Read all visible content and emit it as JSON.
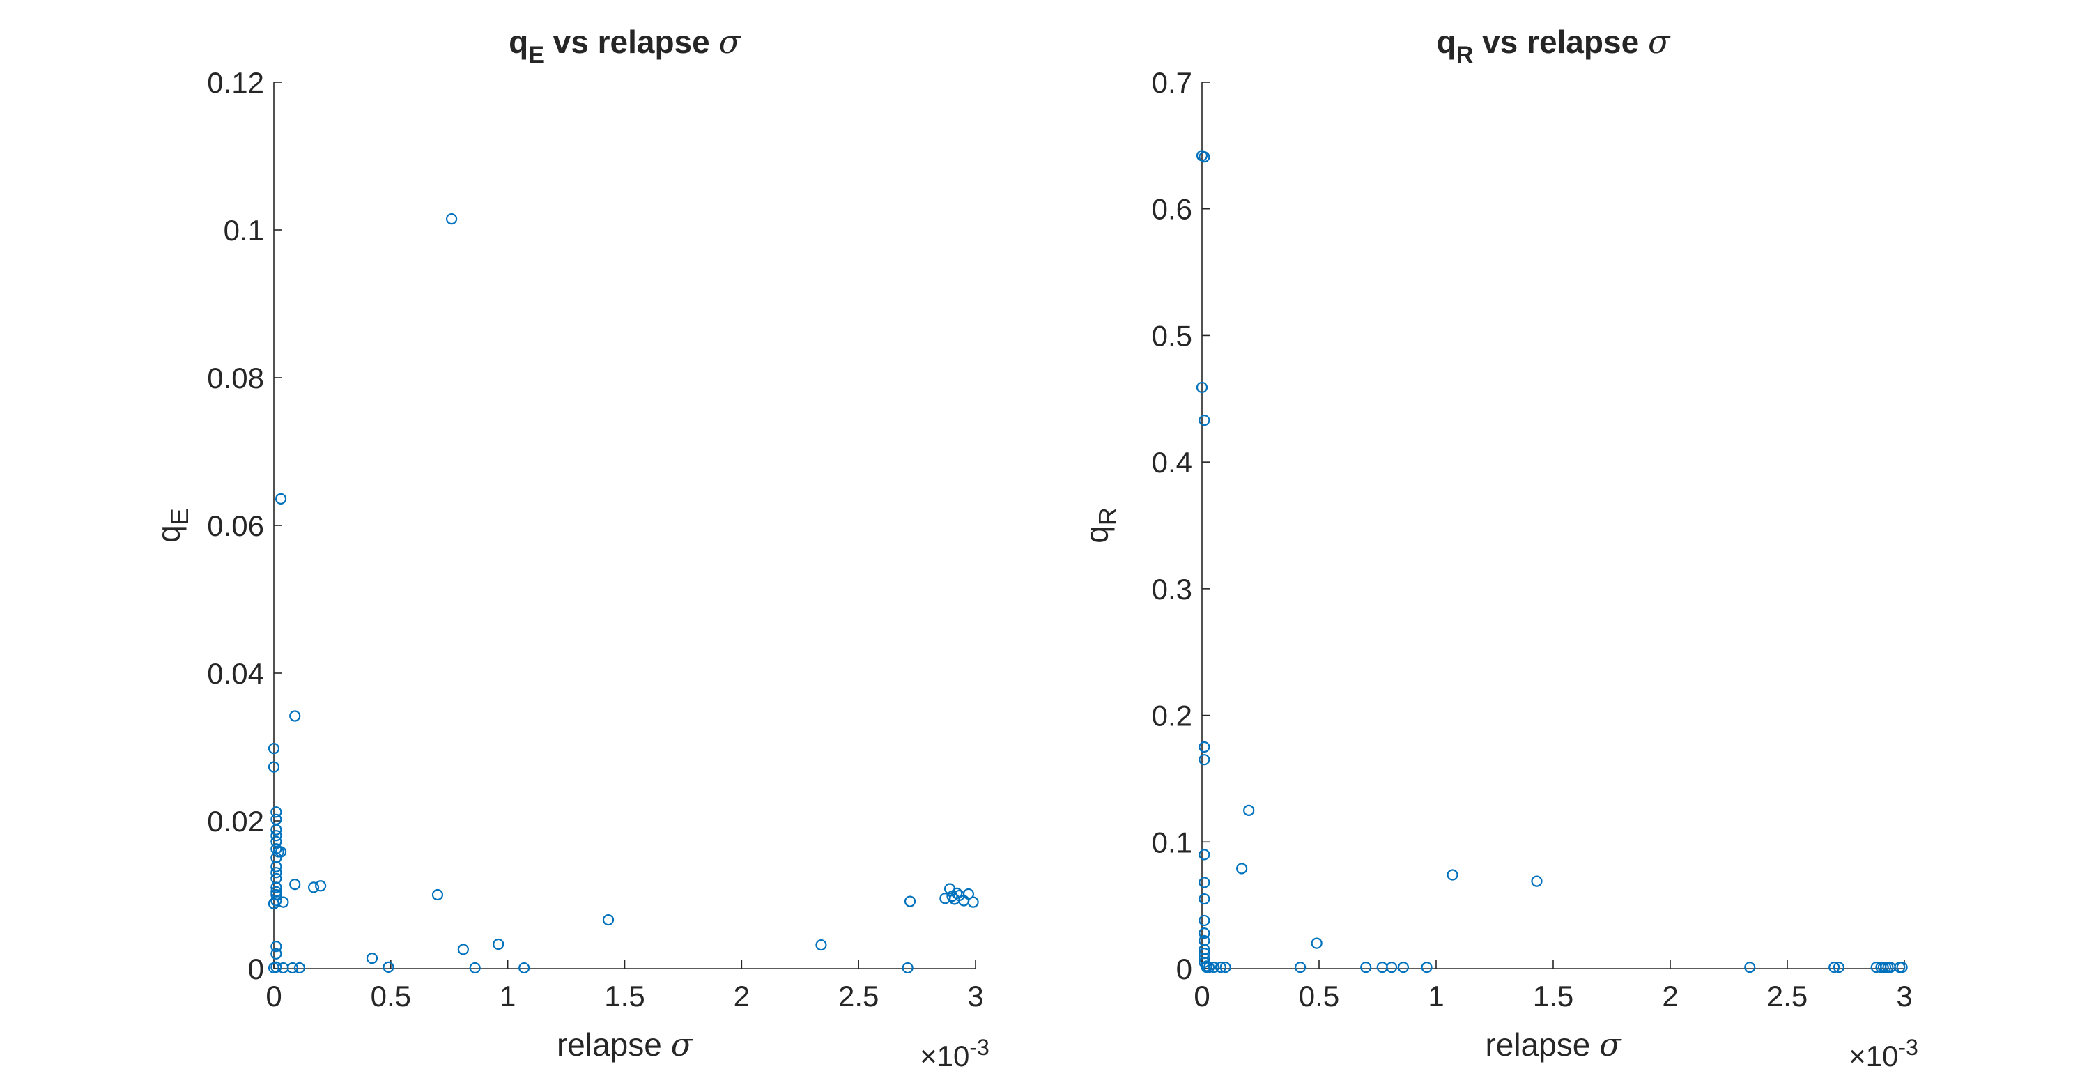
{
  "chart_data": [
    {
      "type": "scatter",
      "title_main": "q",
      "title_sub": "E",
      "title_rest": " vs relapse ",
      "title_sym": "σ",
      "xlabel": "relapse",
      "xlabel_sym": "σ",
      "ylabel": "q",
      "ylabel_sub": "E",
      "xlim": [
        0,
        3
      ],
      "ylim": [
        0,
        0.12
      ],
      "x_exponent": "×10",
      "x_exponent_power": "-3",
      "xticks": [
        0,
        0.5,
        1,
        1.5,
        2,
        2.5,
        3
      ],
      "xtick_labels": [
        "0",
        "0.5",
        "1",
        "1.5",
        "2",
        "2.5",
        "3"
      ],
      "yticks": [
        0,
        0.02,
        0.04,
        0.06,
        0.08,
        0.1,
        0.12
      ],
      "ytick_labels": [
        "0",
        "0.02",
        "0.04",
        "0.06",
        "0.08",
        "0.1",
        "0.12"
      ],
      "color": "#0072BD",
      "x": [
        0.76,
        0.03,
        0.09,
        0.0,
        0.0,
        0.01,
        0.01,
        0.01,
        0.01,
        0.01,
        0.01,
        0.02,
        0.03,
        0.01,
        0.01,
        0.01,
        0.01,
        0.01,
        0.01,
        0.01,
        0.01,
        0.0,
        0.0,
        0.01,
        0.09,
        0.04,
        0.17,
        0.2,
        0.01,
        0.01,
        0.04,
        0.08,
        0.11,
        0.0,
        0.42,
        0.49,
        0.7,
        0.81,
        0.86,
        0.96,
        1.07,
        1.43,
        2.34,
        2.72,
        2.71,
        2.87,
        2.89,
        2.9,
        2.91,
        2.92,
        2.93,
        2.95,
        2.97,
        2.99
      ],
      "y": [
        0.1015,
        0.0636,
        0.0342,
        0.0298,
        0.0273,
        0.0212,
        0.0202,
        0.0188,
        0.018,
        0.0172,
        0.0162,
        0.0158,
        0.0158,
        0.015,
        0.0138,
        0.013,
        0.0122,
        0.011,
        0.0104,
        0.01,
        0.0092,
        0.0088,
        0.0088,
        0.003,
        0.0114,
        0.009,
        0.011,
        0.0112,
        0.002,
        0.0002,
        0.0001,
        0.0001,
        0.0001,
        0.0001,
        0.0014,
        0.0002,
        0.01,
        0.0026,
        0.0001,
        0.0033,
        0.0001,
        0.0066,
        0.0032,
        0.0091,
        0.0001,
        0.0095,
        0.0108,
        0.0098,
        0.0094,
        0.0102,
        0.0099,
        0.0092,
        0.0101,
        0.009
      ]
    },
    {
      "type": "scatter",
      "title_main": "q",
      "title_sub": "R",
      "title_rest": " vs relapse ",
      "title_sym": "σ",
      "xlabel": "relapse",
      "xlabel_sym": "σ",
      "ylabel": "q",
      "ylabel_sub": "R",
      "xlim": [
        0,
        3
      ],
      "ylim": [
        0,
        0.7
      ],
      "x_exponent": "×10",
      "x_exponent_power": "-3",
      "xticks": [
        0,
        0.5,
        1,
        1.5,
        2,
        2.5,
        3
      ],
      "xtick_labels": [
        "0",
        "0.5",
        "1",
        "1.5",
        "2",
        "2.5",
        "3"
      ],
      "yticks": [
        0,
        0.1,
        0.2,
        0.3,
        0.4,
        0.5,
        0.6,
        0.7
      ],
      "ytick_labels": [
        "0",
        "0.1",
        "0.2",
        "0.3",
        "0.4",
        "0.5",
        "0.6",
        "0.7"
      ],
      "color": "#0072BD",
      "x": [
        0.0,
        0.01,
        0.0,
        0.01,
        0.01,
        0.01,
        0.01,
        0.01,
        0.01,
        0.01,
        0.01,
        0.01,
        0.01,
        0.01,
        0.01,
        0.01,
        0.02,
        0.02,
        0.03,
        0.05,
        0.08,
        0.1,
        0.2,
        0.17,
        1.07,
        1.43,
        0.49,
        0.42,
        0.7,
        0.77,
        0.81,
        0.86,
        0.96,
        2.34,
        2.7,
        2.72,
        2.88,
        2.9,
        2.91,
        2.92,
        2.93,
        2.94,
        2.98,
        2.99
      ],
      "y": [
        0.642,
        0.641,
        0.459,
        0.433,
        0.175,
        0.165,
        0.09,
        0.068,
        0.055,
        0.038,
        0.028,
        0.022,
        0.015,
        0.012,
        0.008,
        0.005,
        0.002,
        0.001,
        0.001,
        0.001,
        0.001,
        0.001,
        0.125,
        0.079,
        0.074,
        0.069,
        0.02,
        0.001,
        0.001,
        0.001,
        0.001,
        0.001,
        0.001,
        0.001,
        0.001,
        0.001,
        0.001,
        0.001,
        0.001,
        0.001,
        0.001,
        0.001,
        0.001,
        0.001
      ]
    }
  ]
}
